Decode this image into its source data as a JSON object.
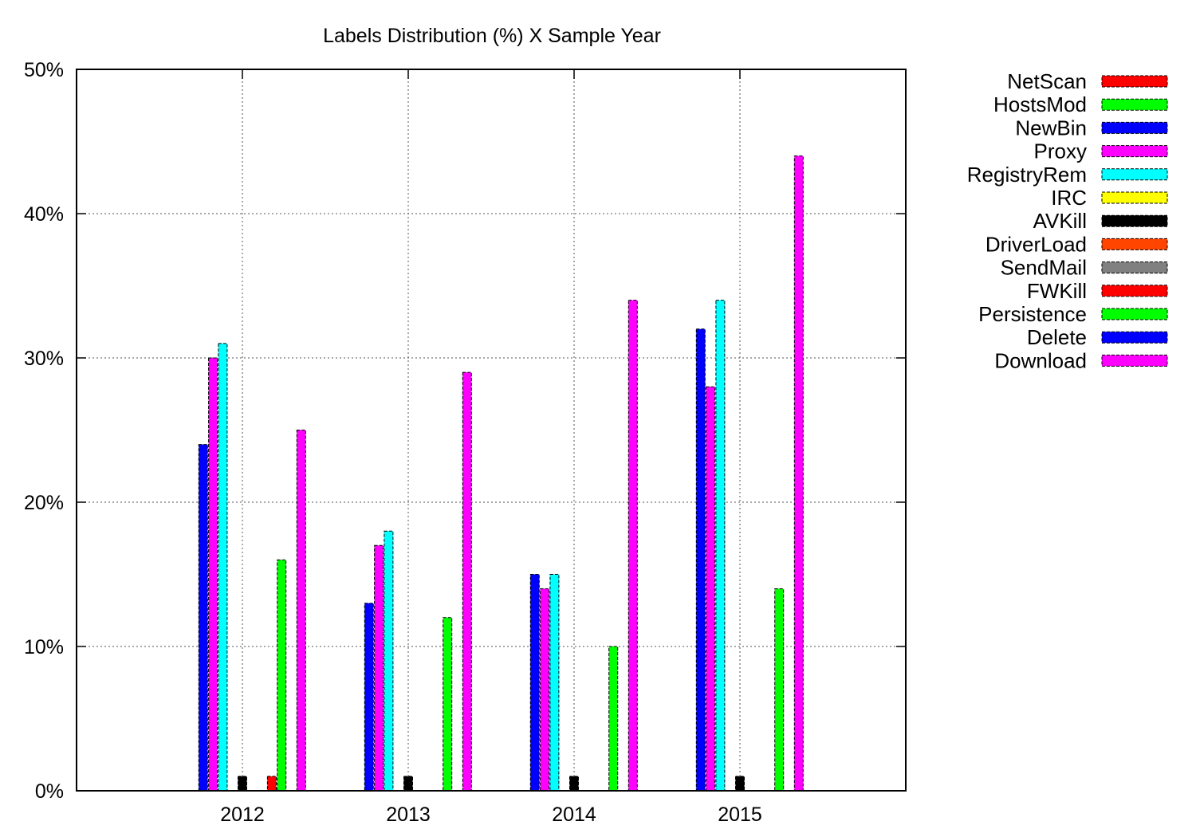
{
  "chart_data": {
    "type": "bar",
    "title": "Labels Distribution (%) X Sample Year",
    "xlabel": "",
    "ylabel": "",
    "ylim": [
      0,
      50
    ],
    "yticks": [
      {
        "value": 0,
        "label": "0%"
      },
      {
        "value": 10,
        "label": "10%"
      },
      {
        "value": 20,
        "label": "20%"
      },
      {
        "value": 30,
        "label": "30%"
      },
      {
        "value": 40,
        "label": "40%"
      },
      {
        "value": 50,
        "label": "50%"
      }
    ],
    "categories": [
      "2012",
      "2013",
      "2014",
      "2015"
    ],
    "grid": true,
    "legend_position": "outside-right",
    "series": [
      {
        "name": "NetScan",
        "color": "#ff0000",
        "values": [
          0,
          0,
          0,
          0
        ]
      },
      {
        "name": "HostsMod",
        "color": "#00ff00",
        "values": [
          0,
          0,
          0,
          0
        ]
      },
      {
        "name": "NewBin",
        "color": "#0000ff",
        "values": [
          24,
          13,
          15,
          32
        ]
      },
      {
        "name": "Proxy",
        "color": "#ff00ff",
        "values": [
          30,
          17,
          14,
          28
        ]
      },
      {
        "name": "RegistryRem",
        "color": "#00ffff",
        "values": [
          31,
          18,
          15,
          34
        ]
      },
      {
        "name": "IRC",
        "color": "#ffff00",
        "values": [
          0,
          0,
          0,
          0
        ]
      },
      {
        "name": "AVKill",
        "color": "#000000",
        "values": [
          1,
          1,
          1,
          1
        ]
      },
      {
        "name": "DriverLoad",
        "color": "#ff4500",
        "values": [
          0,
          0,
          0,
          0
        ]
      },
      {
        "name": "SendMail",
        "color": "#808080",
        "values": [
          0,
          0,
          0,
          0
        ]
      },
      {
        "name": "FWKill",
        "color": "#ff0000",
        "values": [
          1,
          0,
          0,
          0
        ]
      },
      {
        "name": "Persistence",
        "color": "#00ff00",
        "values": [
          16,
          12,
          10,
          14
        ]
      },
      {
        "name": "Delete",
        "color": "#0000ff",
        "values": [
          0,
          0,
          0,
          0
        ]
      },
      {
        "name": "Download",
        "color": "#ff00ff",
        "values": [
          25,
          29,
          34,
          44
        ]
      }
    ]
  }
}
